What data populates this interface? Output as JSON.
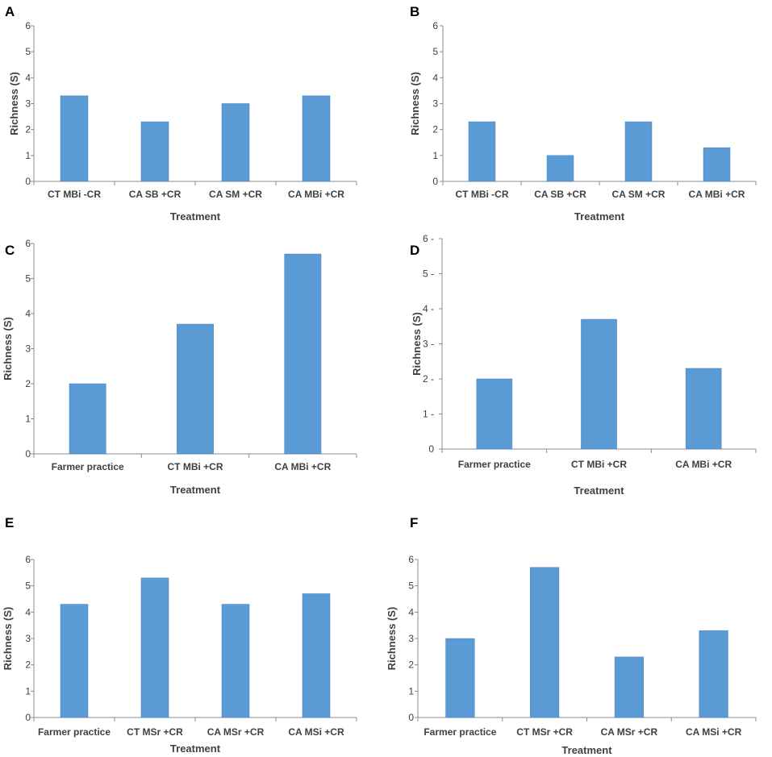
{
  "figure": {
    "bar_color": "#5b9bd5",
    "axis_color": "#8c8c8c",
    "text_color": "#404040"
  },
  "chart_data": [
    {
      "panel": "A",
      "type": "bar",
      "categories": [
        "CT MBi -CR",
        "CA SB +CR",
        "CA SM +CR",
        "CA MBi +CR"
      ],
      "values": [
        3.3,
        2.3,
        3.0,
        3.3
      ],
      "xlabel": "Treatment",
      "ylabel": "Richness (S)",
      "ylim": [
        0,
        6
      ],
      "yticks": [
        "0",
        "1",
        "2",
        "3",
        "4",
        "5",
        "6"
      ],
      "grid": false
    },
    {
      "panel": "B",
      "type": "bar",
      "categories": [
        "CT MBi -CR",
        "CA SB +CR",
        "CA SM +CR",
        "CA MBi +CR"
      ],
      "values": [
        2.3,
        1.0,
        2.3,
        1.3
      ],
      "xlabel": "Treatment",
      "ylabel": "Richness (S)",
      "ylim": [
        0,
        6
      ],
      "yticks": [
        "0",
        "1",
        "2",
        "3",
        "4",
        "5",
        "6"
      ],
      "grid": false
    },
    {
      "panel": "C",
      "type": "bar",
      "categories": [
        "Farmer practice",
        "CT MBi +CR",
        "CA MBi +CR"
      ],
      "values": [
        2.0,
        3.7,
        5.7
      ],
      "xlabel": "Treatment",
      "ylabel": "Richness (S)",
      "ylim": [
        0,
        6
      ],
      "yticks": [
        "0",
        "1",
        "2",
        "3",
        "4",
        "5",
        "6"
      ],
      "grid": false
    },
    {
      "panel": "D",
      "type": "bar",
      "categories": [
        "Farmer practice",
        "CT MBi +CR",
        "CA MBi +CR"
      ],
      "values": [
        2.0,
        3.7,
        2.3
      ],
      "xlabel": "Treatment",
      "ylabel": "Richness (S)",
      "ylim": [
        0,
        6
      ],
      "yticks": [
        "0",
        "1 -",
        "2 -",
        "3 -",
        "4 -",
        "5 -",
        "6 -"
      ],
      "grid": false
    },
    {
      "panel": "E",
      "type": "bar",
      "categories": [
        "Farmer practice",
        "CT MSr +CR",
        "CA MSr +CR",
        "CA MSi +CR"
      ],
      "values": [
        4.3,
        5.3,
        4.3,
        4.7
      ],
      "xlabel": "Treatment",
      "ylabel": "Richness (S)",
      "ylim": [
        0,
        6
      ],
      "yticks": [
        "0",
        "1",
        "2",
        "3",
        "4",
        "5",
        "6"
      ],
      "grid": false
    },
    {
      "panel": "F",
      "type": "bar",
      "categories": [
        "Farmer practice",
        "CT MSr +CR",
        "CA MSr +CR",
        "CA MSi +CR"
      ],
      "values": [
        3.0,
        5.7,
        2.3,
        3.3
      ],
      "xlabel": "Treatment",
      "ylabel": "Richness (S)",
      "ylim": [
        0,
        6
      ],
      "yticks": [
        "0",
        "1",
        "2",
        "3",
        "4",
        "5",
        "6"
      ],
      "grid": false
    }
  ]
}
